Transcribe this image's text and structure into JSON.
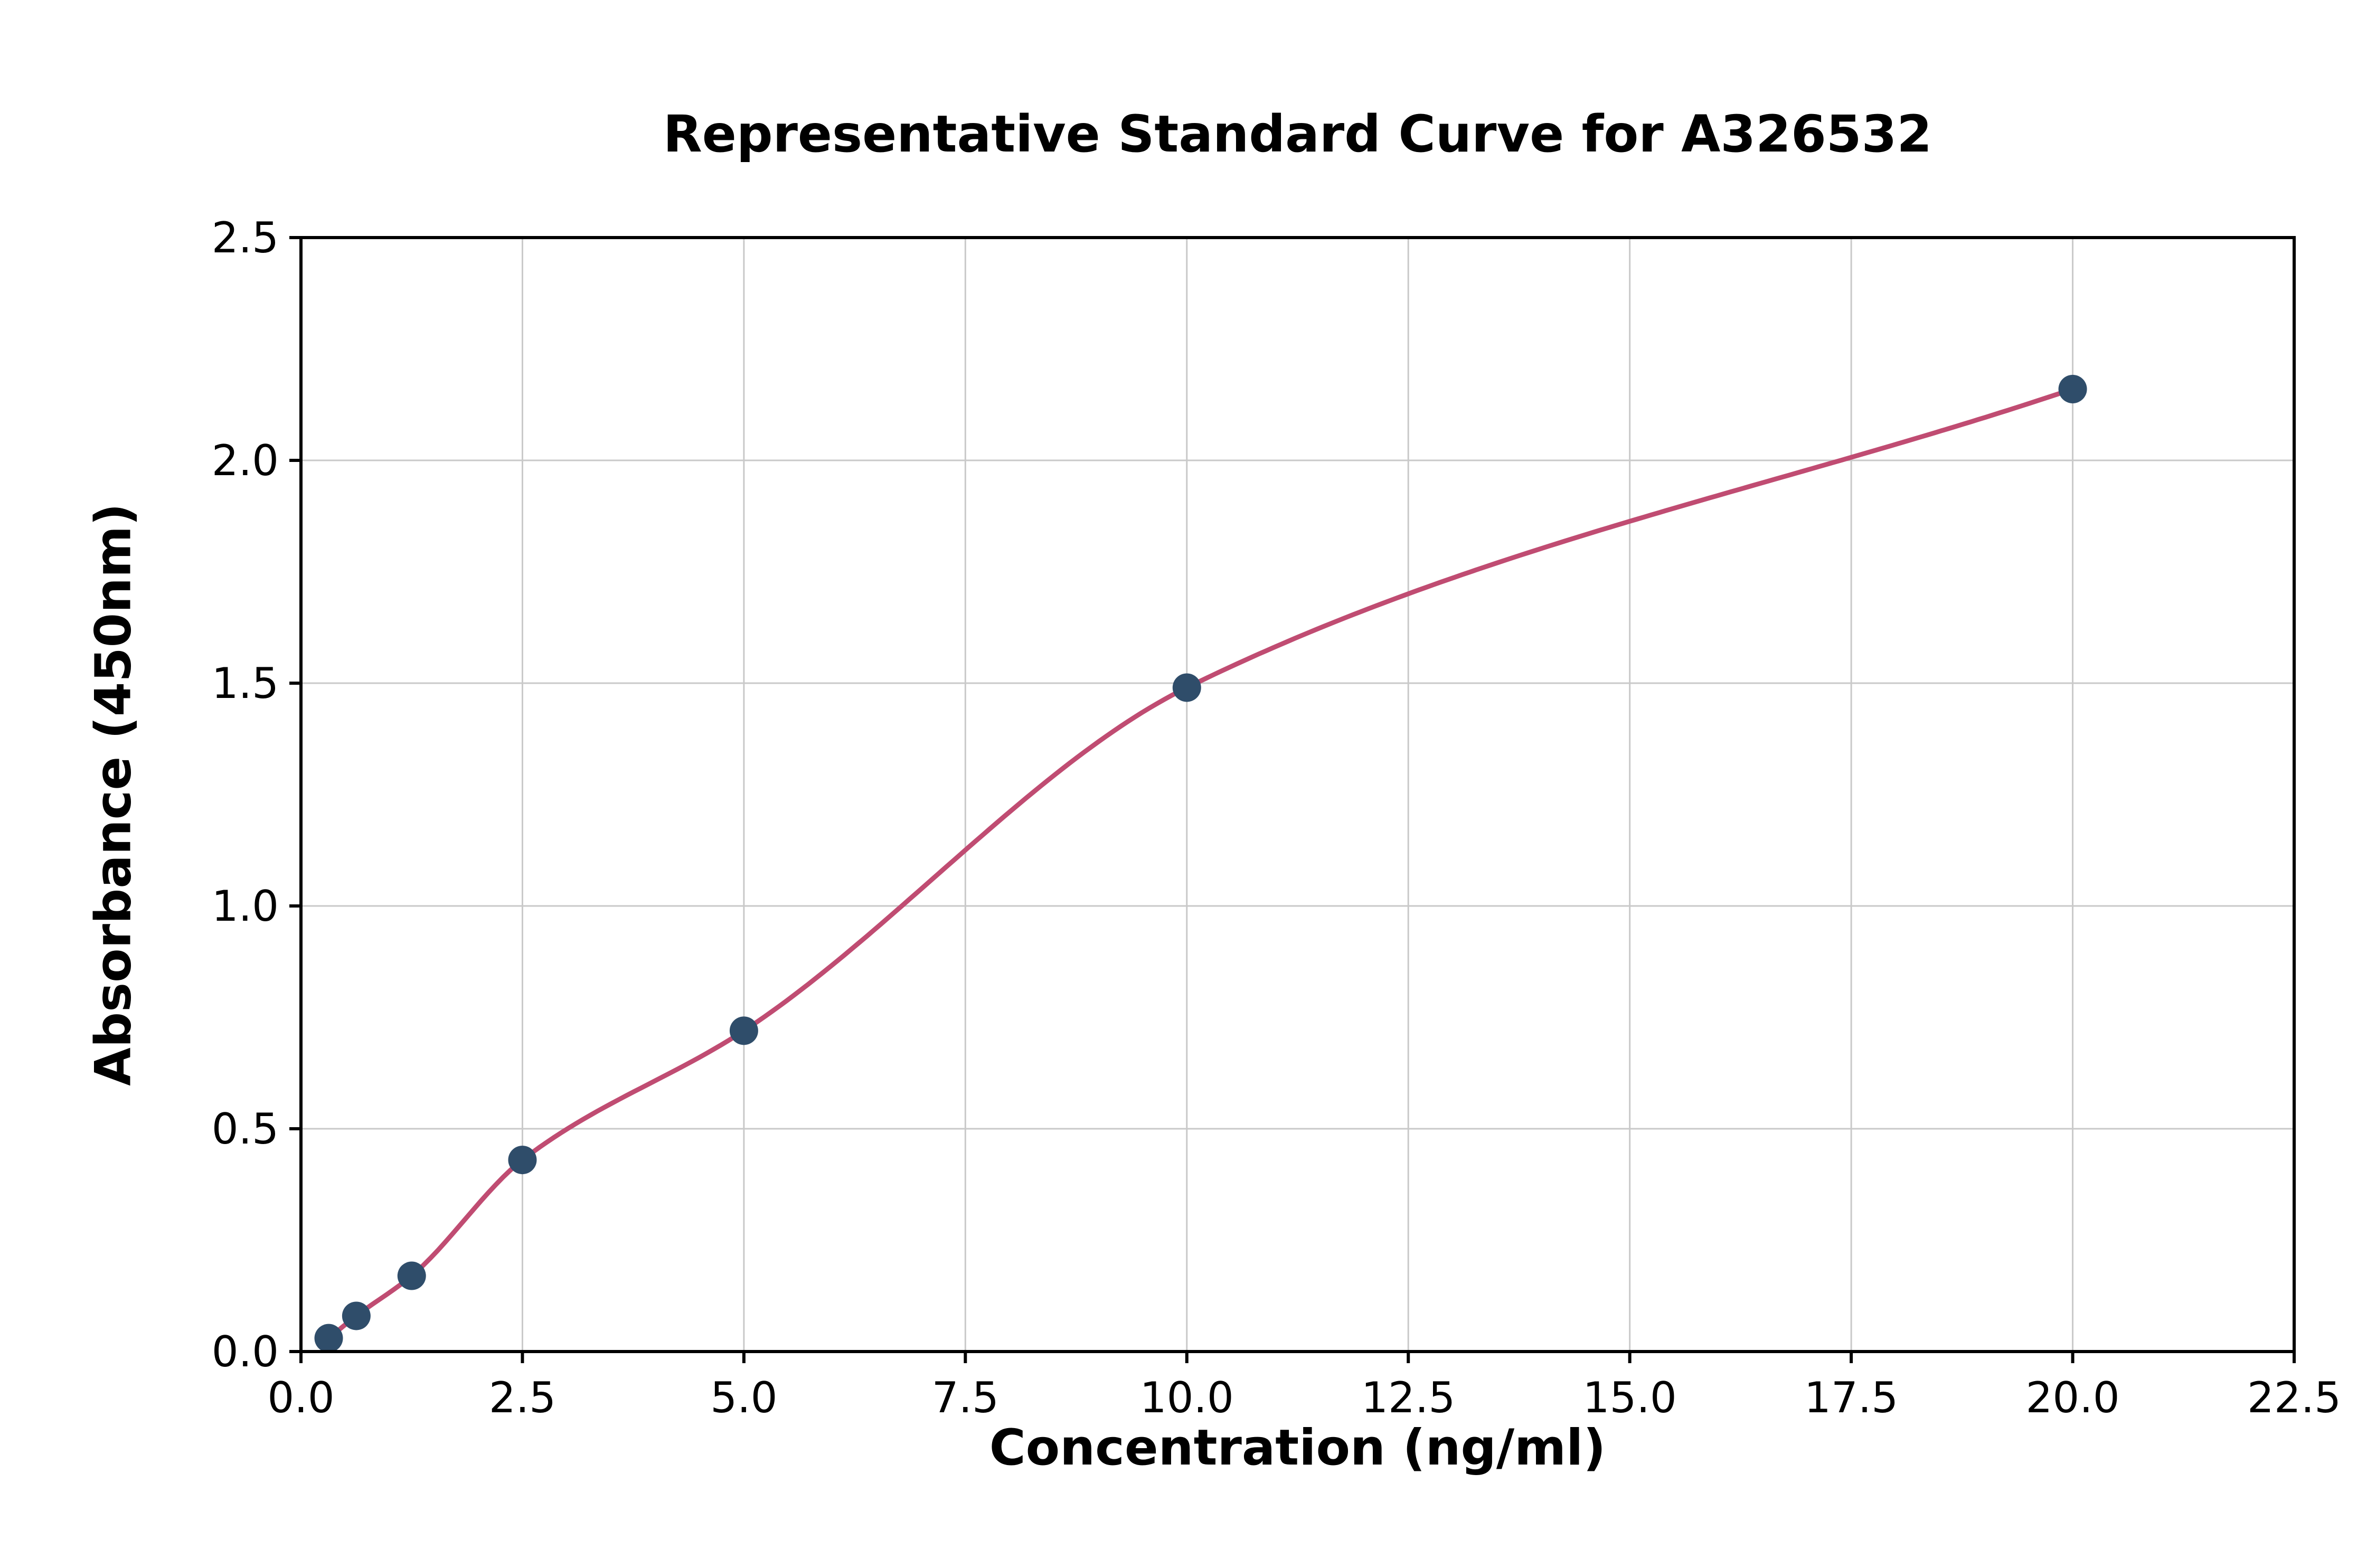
{
  "chart_data": {
    "type": "scatter",
    "title": "Representative Standard Curve for A326532",
    "xlabel": "Concentration (ng/ml)",
    "ylabel": "Absorbance (450nm)",
    "xlim": [
      0,
      22.5
    ],
    "ylim": [
      0,
      2.5
    ],
    "x_ticks": [
      0,
      2.5,
      5,
      7.5,
      10,
      12.5,
      15,
      17.5,
      20,
      22.5
    ],
    "x_tick_labels": [
      "0.0",
      "2.5",
      "5.0",
      "7.5",
      "10.0",
      "12.5",
      "15.0",
      "17.5",
      "20.0",
      "22.5"
    ],
    "y_ticks": [
      0,
      0.5,
      1,
      1.5,
      2,
      2.5
    ],
    "y_tick_labels": [
      "0.0",
      "0.5",
      "1.0",
      "1.5",
      "2.0",
      "2.5"
    ],
    "grid": true,
    "legend": "none",
    "series": [
      {
        "name": "standard-points",
        "x": [
          0.313,
          0.625,
          1.25,
          2.5,
          5,
          10,
          20
        ],
        "y": [
          0.03,
          0.08,
          0.17,
          0.43,
          0.72,
          1.49,
          2.16
        ]
      }
    ],
    "fit_curve": {
      "description": "smooth sigmoidal fit through standard points",
      "x_start": 0.2,
      "x_end": 20
    },
    "colors": {
      "point": "#2f4d6a",
      "curve": "#c04c72",
      "grid": "#c9c9c9",
      "axis": "#000000",
      "background": "#ffffff"
    }
  }
}
